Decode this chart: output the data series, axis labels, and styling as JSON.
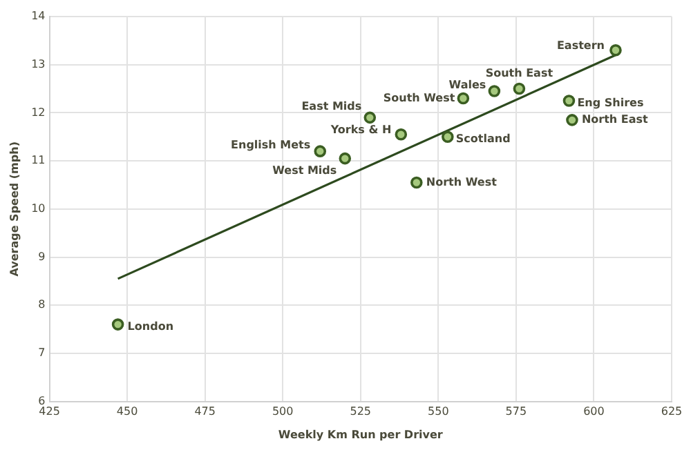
{
  "chart_data": {
    "type": "scatter",
    "xlabel": "Weekly Km Run per Driver",
    "ylabel": "Average Speed (mph)",
    "xlim": [
      425,
      625
    ],
    "xticks": [
      425,
      450,
      475,
      500,
      525,
      550,
      575,
      600,
      625
    ],
    "ylim": [
      6,
      14
    ],
    "yticks": [
      6,
      7,
      8,
      9,
      10,
      11,
      12,
      13,
      14
    ],
    "grid": true,
    "legend": false,
    "series": [
      {
        "marker": "circle",
        "color": "#a6c97e",
        "x": [
          447,
          512,
          520,
          528,
          538,
          553,
          543,
          558,
          568,
          576,
          592,
          593,
          607
        ],
        "values": [
          7.6,
          11.2,
          11.05,
          11.9,
          11.55,
          11.5,
          10.55,
          12.3,
          12.45,
          12.5,
          12.25,
          11.85,
          13.3
        ]
      },
      {
        "type": "line",
        "color": "#2d4a1e",
        "x": [
          447,
          607
        ],
        "values": [
          8.55,
          13.2
        ]
      }
    ],
    "annotations": [
      {
        "text": "London",
        "x": 447,
        "y": 7.6
      },
      {
        "text": "English Mets",
        "x": 512,
        "y": 11.2
      },
      {
        "text": "West Mids",
        "x": 520,
        "y": 11.05
      },
      {
        "text": "East Mids",
        "x": 528,
        "y": 11.9
      },
      {
        "text": "Yorks & H",
        "x": 538,
        "y": 11.55
      },
      {
        "text": "Scotland",
        "x": 553,
        "y": 11.5
      },
      {
        "text": "North West",
        "x": 543,
        "y": 10.55
      },
      {
        "text": "South West",
        "x": 558,
        "y": 12.3
      },
      {
        "text": "Wales",
        "x": 568,
        "y": 12.45
      },
      {
        "text": "South East",
        "x": 576,
        "y": 12.5
      },
      {
        "text": "Eng Shires",
        "x": 592,
        "y": 12.25
      },
      {
        "text": "North East",
        "x": 593,
        "y": 11.85
      },
      {
        "text": "Eastern",
        "x": 607,
        "y": 13.3
      }
    ]
  }
}
